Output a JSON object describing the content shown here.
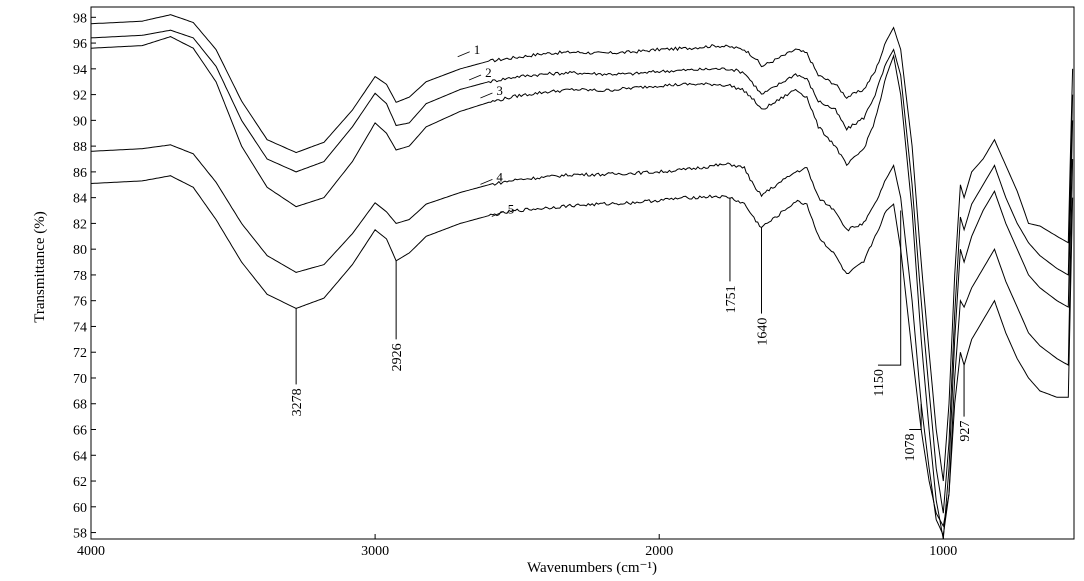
{
  "chart_data": {
    "type": "line",
    "xlabel": "Wavenumbers (cm⁻¹)",
    "ylabel": "Transmittance (%)",
    "xlim": [
      4000,
      540
    ],
    "ylim": [
      57.5,
      98.8
    ],
    "x_reversed": true,
    "grid": false,
    "x_ticks": [
      4000,
      3000,
      2000,
      1000
    ],
    "y_ticks": [
      58,
      60,
      62,
      64,
      66,
      68,
      70,
      72,
      74,
      76,
      78,
      80,
      82,
      84,
      86,
      88,
      90,
      92,
      94,
      96,
      98
    ],
    "series": [
      {
        "name": "1",
        "label_at": [
          2660,
          95.4
        ],
        "points": [
          [
            4000,
            97.5
          ],
          [
            3820,
            97.7
          ],
          [
            3720,
            98.2
          ],
          [
            3640,
            97.6
          ],
          [
            3560,
            95.5
          ],
          [
            3470,
            91.5
          ],
          [
            3380,
            88.5
          ],
          [
            3278,
            87.5
          ],
          [
            3180,
            88.3
          ],
          [
            3080,
            90.8
          ],
          [
            3000,
            93.4
          ],
          [
            2960,
            92.8
          ],
          [
            2926,
            91.4
          ],
          [
            2880,
            91.8
          ],
          [
            2820,
            93.0
          ],
          [
            2700,
            94.0
          ],
          [
            2600,
            94.6
          ],
          [
            2500,
            94.9
          ],
          [
            2400,
            95.2
          ],
          [
            2300,
            95.3
          ],
          [
            2200,
            95.2
          ],
          [
            2100,
            95.3
          ],
          [
            2000,
            95.5
          ],
          [
            1900,
            95.6
          ],
          [
            1800,
            95.8
          ],
          [
            1751,
            95.7
          ],
          [
            1700,
            95.5
          ],
          [
            1660,
            94.8
          ],
          [
            1640,
            94.2
          ],
          [
            1600,
            94.6
          ],
          [
            1520,
            95.5
          ],
          [
            1480,
            95.2
          ],
          [
            1440,
            93.5
          ],
          [
            1380,
            92.8
          ],
          [
            1340,
            91.8
          ],
          [
            1280,
            92.4
          ],
          [
            1240,
            93.8
          ],
          [
            1200,
            96.2
          ],
          [
            1175,
            97.2
          ],
          [
            1150,
            95.5
          ],
          [
            1110,
            88.0
          ],
          [
            1078,
            79.0
          ],
          [
            1050,
            72.0
          ],
          [
            1025,
            66.0
          ],
          [
            1000,
            62.0
          ],
          [
            980,
            68.0
          ],
          [
            960,
            78.0
          ],
          [
            940,
            85.0
          ],
          [
            927,
            84.0
          ],
          [
            900,
            86.0
          ],
          [
            860,
            87.0
          ],
          [
            820,
            88.5
          ],
          [
            780,
            86.5
          ],
          [
            740,
            84.5
          ],
          [
            700,
            82.0
          ],
          [
            660,
            81.8
          ],
          [
            600,
            81.0
          ],
          [
            560,
            80.5
          ],
          [
            545,
            94.0
          ]
        ]
      },
      {
        "name": "2",
        "label_at": [
          2620,
          93.6
        ],
        "points": [
          [
            4000,
            96.4
          ],
          [
            3820,
            96.6
          ],
          [
            3720,
            97.0
          ],
          [
            3640,
            96.4
          ],
          [
            3560,
            94.2
          ],
          [
            3470,
            90.0
          ],
          [
            3380,
            87.0
          ],
          [
            3278,
            86.0
          ],
          [
            3180,
            86.8
          ],
          [
            3080,
            89.5
          ],
          [
            3000,
            92.1
          ],
          [
            2960,
            91.3
          ],
          [
            2926,
            89.6
          ],
          [
            2880,
            89.8
          ],
          [
            2820,
            91.3
          ],
          [
            2700,
            92.4
          ],
          [
            2600,
            93.0
          ],
          [
            2500,
            93.4
          ],
          [
            2400,
            93.6
          ],
          [
            2300,
            93.7
          ],
          [
            2200,
            93.6
          ],
          [
            2100,
            93.6
          ],
          [
            2000,
            93.8
          ],
          [
            1900,
            93.9
          ],
          [
            1800,
            94.0
          ],
          [
            1751,
            94.0
          ],
          [
            1700,
            93.7
          ],
          [
            1660,
            92.6
          ],
          [
            1640,
            92.0
          ],
          [
            1600,
            92.5
          ],
          [
            1520,
            93.6
          ],
          [
            1480,
            93.2
          ],
          [
            1440,
            91.5
          ],
          [
            1380,
            90.8
          ],
          [
            1340,
            89.3
          ],
          [
            1280,
            90.2
          ],
          [
            1240,
            92.0
          ],
          [
            1200,
            94.5
          ],
          [
            1175,
            95.5
          ],
          [
            1150,
            93.5
          ],
          [
            1110,
            85.0
          ],
          [
            1078,
            76.0
          ],
          [
            1050,
            69.0
          ],
          [
            1025,
            63.0
          ],
          [
            1000,
            59.5
          ],
          [
            980,
            65.0
          ],
          [
            960,
            75.0
          ],
          [
            940,
            82.5
          ],
          [
            927,
            81.5
          ],
          [
            900,
            83.5
          ],
          [
            860,
            85.0
          ],
          [
            820,
            86.5
          ],
          [
            780,
            84.0
          ],
          [
            740,
            82.0
          ],
          [
            700,
            80.5
          ],
          [
            660,
            79.5
          ],
          [
            600,
            78.5
          ],
          [
            560,
            78.0
          ],
          [
            545,
            92.0
          ]
        ]
      },
      {
        "name": "3",
        "label_at": [
          2580,
          92.2
        ],
        "points": [
          [
            4000,
            95.6
          ],
          [
            3820,
            95.8
          ],
          [
            3720,
            96.5
          ],
          [
            3640,
            95.6
          ],
          [
            3560,
            93.0
          ],
          [
            3470,
            88.0
          ],
          [
            3380,
            84.8
          ],
          [
            3278,
            83.3
          ],
          [
            3180,
            84.0
          ],
          [
            3080,
            86.8
          ],
          [
            3000,
            89.8
          ],
          [
            2960,
            89.0
          ],
          [
            2926,
            87.7
          ],
          [
            2880,
            88.0
          ],
          [
            2820,
            89.5
          ],
          [
            2700,
            90.7
          ],
          [
            2600,
            91.4
          ],
          [
            2500,
            91.9
          ],
          [
            2400,
            92.2
          ],
          [
            2300,
            92.4
          ],
          [
            2200,
            92.3
          ],
          [
            2100,
            92.5
          ],
          [
            2000,
            92.7
          ],
          [
            1900,
            92.8
          ],
          [
            1800,
            92.8
          ],
          [
            1751,
            92.7
          ],
          [
            1700,
            92.3
          ],
          [
            1660,
            91.4
          ],
          [
            1640,
            90.8
          ],
          [
            1600,
            91.3
          ],
          [
            1520,
            92.4
          ],
          [
            1480,
            91.8
          ],
          [
            1440,
            89.5
          ],
          [
            1380,
            88.0
          ],
          [
            1340,
            86.5
          ],
          [
            1280,
            87.8
          ],
          [
            1240,
            90.0
          ],
          [
            1200,
            93.5
          ],
          [
            1175,
            95.0
          ],
          [
            1150,
            92.0
          ],
          [
            1110,
            83.0
          ],
          [
            1078,
            73.0
          ],
          [
            1050,
            66.0
          ],
          [
            1025,
            60.5
          ],
          [
            1000,
            57.5
          ],
          [
            980,
            63.0
          ],
          [
            960,
            73.0
          ],
          [
            940,
            80.0
          ],
          [
            927,
            79.0
          ],
          [
            900,
            81.0
          ],
          [
            860,
            83.0
          ],
          [
            820,
            84.5
          ],
          [
            780,
            82.0
          ],
          [
            740,
            80.0
          ],
          [
            700,
            78.0
          ],
          [
            660,
            77.0
          ],
          [
            600,
            76.0
          ],
          [
            560,
            75.5
          ],
          [
            545,
            90.0
          ]
        ]
      },
      {
        "name": "4",
        "label_at": [
          2580,
          85.5
        ],
        "points": [
          [
            4000,
            87.6
          ],
          [
            3820,
            87.8
          ],
          [
            3720,
            88.1
          ],
          [
            3640,
            87.4
          ],
          [
            3560,
            85.2
          ],
          [
            3470,
            82.0
          ],
          [
            3380,
            79.5
          ],
          [
            3278,
            78.2
          ],
          [
            3180,
            78.8
          ],
          [
            3080,
            81.2
          ],
          [
            3000,
            83.6
          ],
          [
            2960,
            82.9
          ],
          [
            2926,
            82.0
          ],
          [
            2880,
            82.3
          ],
          [
            2820,
            83.5
          ],
          [
            2700,
            84.4
          ],
          [
            2600,
            85.0
          ],
          [
            2500,
            85.4
          ],
          [
            2400,
            85.6
          ],
          [
            2300,
            85.8
          ],
          [
            2200,
            85.8
          ],
          [
            2100,
            85.9
          ],
          [
            2000,
            86.0
          ],
          [
            1900,
            86.2
          ],
          [
            1800,
            86.5
          ],
          [
            1751,
            86.6
          ],
          [
            1700,
            86.3
          ],
          [
            1660,
            84.6
          ],
          [
            1640,
            84.2
          ],
          [
            1600,
            84.8
          ],
          [
            1520,
            86.0
          ],
          [
            1480,
            86.3
          ],
          [
            1440,
            84.0
          ],
          [
            1380,
            83.0
          ],
          [
            1340,
            81.5
          ],
          [
            1280,
            82.0
          ],
          [
            1240,
            83.5
          ],
          [
            1200,
            85.5
          ],
          [
            1175,
            86.5
          ],
          [
            1150,
            84.0
          ],
          [
            1110,
            76.0
          ],
          [
            1078,
            68.0
          ],
          [
            1050,
            63.0
          ],
          [
            1025,
            59.0
          ],
          [
            1000,
            57.8
          ],
          [
            980,
            61.0
          ],
          [
            960,
            70.0
          ],
          [
            940,
            76.0
          ],
          [
            927,
            75.5
          ],
          [
            900,
            77.0
          ],
          [
            860,
            78.5
          ],
          [
            820,
            80.0
          ],
          [
            780,
            77.5
          ],
          [
            740,
            75.5
          ],
          [
            700,
            73.5
          ],
          [
            660,
            72.5
          ],
          [
            600,
            71.5
          ],
          [
            560,
            71.0
          ],
          [
            545,
            87.0
          ]
        ]
      },
      {
        "name": "5",
        "label_at": [
          2540,
          83.0
        ],
        "points": [
          [
            4000,
            85.1
          ],
          [
            3820,
            85.3
          ],
          [
            3720,
            85.7
          ],
          [
            3640,
            84.8
          ],
          [
            3560,
            82.3
          ],
          [
            3470,
            79.0
          ],
          [
            3380,
            76.5
          ],
          [
            3278,
            75.4
          ],
          [
            3180,
            76.2
          ],
          [
            3080,
            78.8
          ],
          [
            3000,
            81.5
          ],
          [
            2960,
            80.8
          ],
          [
            2926,
            79.1
          ],
          [
            2880,
            79.7
          ],
          [
            2820,
            81.0
          ],
          [
            2700,
            82.0
          ],
          [
            2600,
            82.6
          ],
          [
            2500,
            83.0
          ],
          [
            2400,
            83.2
          ],
          [
            2300,
            83.4
          ],
          [
            2200,
            83.5
          ],
          [
            2100,
            83.6
          ],
          [
            2000,
            83.8
          ],
          [
            1900,
            84.0
          ],
          [
            1800,
            84.1
          ],
          [
            1751,
            84.0
          ],
          [
            1700,
            83.5
          ],
          [
            1660,
            82.2
          ],
          [
            1640,
            81.7
          ],
          [
            1600,
            82.3
          ],
          [
            1520,
            83.7
          ],
          [
            1480,
            83.5
          ],
          [
            1440,
            81.0
          ],
          [
            1380,
            79.5
          ],
          [
            1340,
            78.0
          ],
          [
            1280,
            79.0
          ],
          [
            1240,
            81.0
          ],
          [
            1200,
            83.0
          ],
          [
            1175,
            83.5
          ],
          [
            1150,
            80.0
          ],
          [
            1110,
            72.0
          ],
          [
            1078,
            66.0
          ],
          [
            1050,
            62.0
          ],
          [
            1025,
            59.5
          ],
          [
            1000,
            58.5
          ],
          [
            980,
            61.0
          ],
          [
            960,
            68.0
          ],
          [
            940,
            72.0
          ],
          [
            927,
            71.0
          ],
          [
            900,
            73.0
          ],
          [
            860,
            74.5
          ],
          [
            820,
            76.0
          ],
          [
            780,
            73.5
          ],
          [
            740,
            71.5
          ],
          [
            700,
            70.0
          ],
          [
            660,
            69.0
          ],
          [
            600,
            68.5
          ],
          [
            560,
            68.5
          ],
          [
            545,
            84.0
          ]
        ]
      }
    ],
    "annotations": [
      {
        "label": "3278",
        "x": 3278,
        "attach_y": 75.4,
        "text_y": 69.5
      },
      {
        "label": "2926",
        "x": 2926,
        "attach_y": 79.1,
        "text_y": 73.0
      },
      {
        "label": "1751",
        "x": 1751,
        "attach_y": 84.0,
        "text_y": 77.5
      },
      {
        "label": "1640",
        "x": 1640,
        "attach_y": 81.7,
        "text_y": 75.0
      },
      {
        "label": "1150",
        "x": 1150,
        "attach_y": 83.0,
        "text_y": 71.0,
        "elbow_x": 1230,
        "elbow_y": 71.0
      },
      {
        "label": "1078",
        "x": 1078,
        "attach_y": 68.0,
        "text_y": 66.0,
        "elbow_x": 1120,
        "elbow_y": 66.0
      },
      {
        "label": "927",
        "x": 927,
        "attach_y": 71.0,
        "text_y": 67.0
      }
    ]
  }
}
